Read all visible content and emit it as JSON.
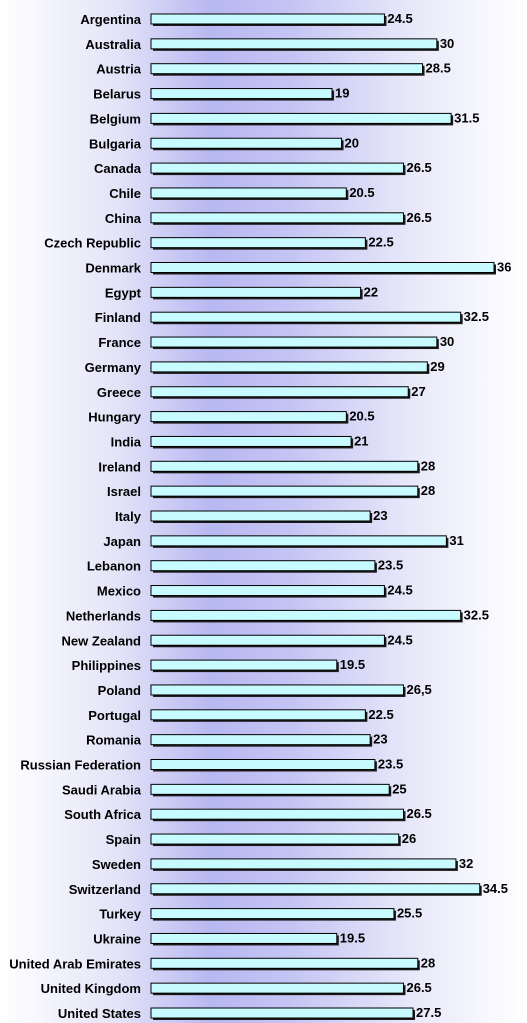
{
  "chart_data": {
    "type": "bar",
    "orientation": "horizontal",
    "title": "",
    "xlabel": "",
    "ylabel": "",
    "xlim": [
      0,
      36
    ],
    "grid": false,
    "legend": "none",
    "colors": {
      "bar_fill": "#c8fbff",
      "bar_stroke": "#000000",
      "bar_shadow": "#1a1a1a"
    },
    "categories": [
      "Argentina",
      "Australia",
      "Austria",
      "Belarus",
      "Belgium",
      "Bulgaria",
      "Canada",
      "Chile",
      "China",
      "Czech Republic",
      "Denmark",
      "Egypt",
      "Finland",
      "France",
      "Germany",
      "Greece",
      "Hungary",
      "India",
      "Ireland",
      "Israel",
      "Italy",
      "Japan",
      "Lebanon",
      "Mexico",
      "Netherlands",
      "New Zealand",
      "Philippines",
      "Poland",
      "Portugal",
      "Romania",
      "Russian Federation",
      "Saudi Arabia",
      "South Africa",
      "Spain",
      "Sweden",
      "Switzerland",
      "Turkey",
      "Ukraine",
      "United Arab Emirates",
      "United Kingdom",
      "United States"
    ],
    "values": [
      24.5,
      30,
      28.5,
      19,
      31.5,
      20,
      26.5,
      20.5,
      26.5,
      22.5,
      36,
      22,
      32.5,
      30,
      29,
      27,
      20.5,
      21,
      28,
      28,
      23,
      31,
      23.5,
      24.5,
      32.5,
      24.5,
      19.5,
      26.5,
      22.5,
      23,
      23.5,
      25,
      26.5,
      26,
      32,
      34.5,
      25.5,
      19.5,
      28,
      26.5,
      27.5
    ],
    "value_labels": [
      "24.5",
      "30",
      "28.5",
      "19",
      "31.5",
      "20",
      "26.5",
      "20.5",
      "26.5",
      "22.5",
      "36",
      "22",
      "32.5",
      "30",
      "29",
      "27",
      "20.5",
      "21",
      "28",
      "28",
      "23",
      "31",
      "23.5",
      "24.5",
      "32.5",
      "24.5",
      "19.5",
      "26,5",
      "22.5",
      "23",
      "23.5",
      "25",
      "26.5",
      "26",
      "32",
      "34.5",
      "25.5",
      "19.5",
      "28",
      "26.5",
      "27.5"
    ]
  }
}
